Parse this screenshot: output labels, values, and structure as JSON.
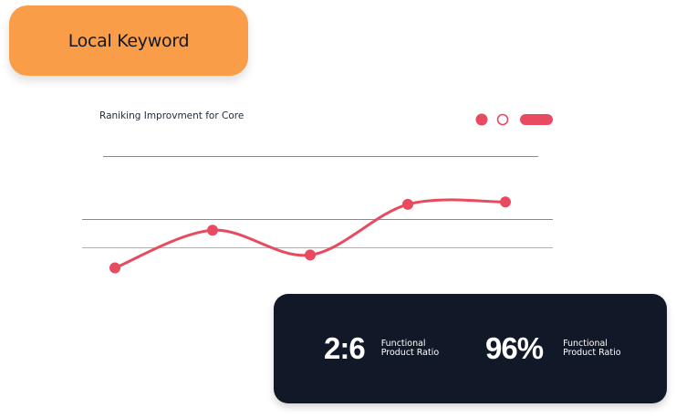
{
  "badge": {
    "label": "Local Keyword",
    "color": "#f99d48"
  },
  "chart_data": {
    "type": "line",
    "title": "Raniking Improvment for Core",
    "series": [
      {
        "values": [
          5,
          37,
          16,
          59,
          61
        ],
        "color": "#e84a5f"
      }
    ],
    "ylim": [
      0,
      100
    ],
    "grid": true,
    "legend": "top-right"
  },
  "stats": [
    {
      "value": "2:6",
      "label_line1": "Functional",
      "label_line2": "Product Ratio"
    },
    {
      "value": "96%",
      "label_line1": "Functional",
      "label_line2": "Product Ratio"
    }
  ],
  "colors": {
    "accent": "#e84a5f",
    "card_bg": "#111827"
  }
}
